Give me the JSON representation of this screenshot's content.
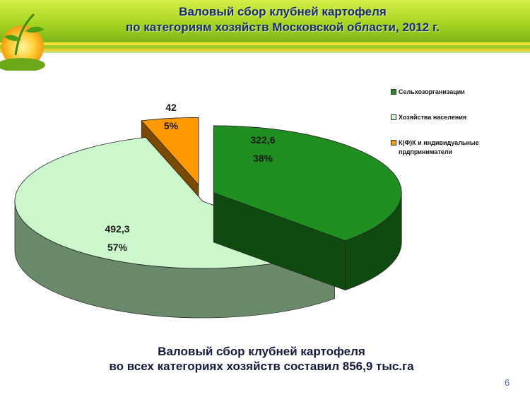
{
  "slide": {
    "title_line1": "Валовый сбор клубней картофеля",
    "title_line2": "по категориям хозяйств  Московской области, 2012 г.",
    "footer_line1": "Валовый сбор клубней картофеля",
    "footer_line2": "во всех категориях хозяйств составил 856,9  тыс.га",
    "page_number": "6"
  },
  "chart_data": {
    "type": "pie",
    "title": "",
    "slices": [
      {
        "name": "Сельхозорганизации",
        "value": 322.6,
        "value_label": "322,6",
        "percent_label": "38%",
        "color": "#1f8f1f",
        "side_color": "#0f4a0f"
      },
      {
        "name": "Хозяйства населения",
        "value": 492.3,
        "value_label": "492,3",
        "percent_label": "57%",
        "color": "#ccf7cc",
        "side_color": "#6b8a6b"
      },
      {
        "name": "К(Ф)К и индивидуальные прдприниматели",
        "value": 42,
        "value_label": "42",
        "percent_label": "5%",
        "color": "#ff9900",
        "side_color": "#7a4a00"
      }
    ],
    "legend_position": "right"
  }
}
